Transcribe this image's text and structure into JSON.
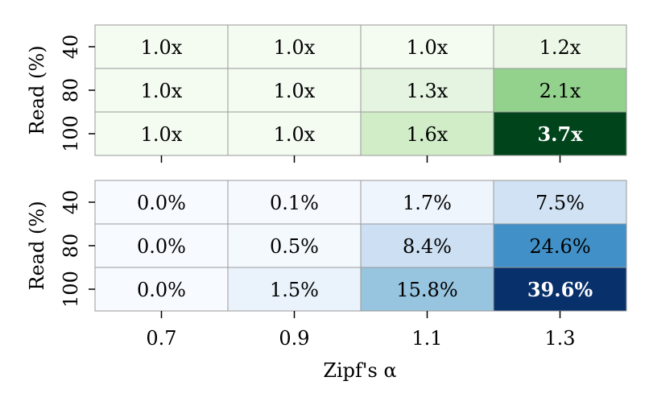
{
  "chart_data": [
    {
      "type": "heatmap",
      "colormap": "Greens",
      "x": [
        "0.7",
        "0.9",
        "1.1",
        "1.3"
      ],
      "y": [
        "40",
        "80",
        "100"
      ],
      "ylabel": "Read (%)",
      "values": [
        [
          1.0,
          1.0,
          1.0,
          1.2
        ],
        [
          1.0,
          1.0,
          1.3,
          2.1
        ],
        [
          1.0,
          1.0,
          1.6,
          3.7
        ]
      ],
      "labels": [
        [
          "1.0x",
          "1.0x",
          "1.0x",
          "1.2x"
        ],
        [
          "1.0x",
          "1.0x",
          "1.3x",
          "2.1x"
        ],
        [
          "1.0x",
          "1.0x",
          "1.6x",
          "3.7x"
        ]
      ],
      "colors": [
        [
          "#f4fbf1",
          "#f4fbf1",
          "#f4fbf1",
          "#ecf7e8"
        ],
        [
          "#f4fbf1",
          "#f4fbf1",
          "#e5f4e0",
          "#93d28d"
        ],
        [
          "#f4fbf1",
          "#f4fbf1",
          "#d0edc8",
          "#00441b"
        ]
      ],
      "highlight": {
        "row": 2,
        "col": 3
      }
    },
    {
      "type": "heatmap",
      "colormap": "Blues",
      "x": [
        "0.7",
        "0.9",
        "1.1",
        "1.3"
      ],
      "y": [
        "40",
        "80",
        "100"
      ],
      "ylabel": "Read (%)",
      "xlabel": "Zipf's α",
      "values": [
        [
          0.0,
          0.1,
          1.7,
          7.5
        ],
        [
          0.0,
          0.5,
          8.4,
          24.6
        ],
        [
          0.0,
          1.5,
          15.8,
          39.6
        ]
      ],
      "labels": [
        [
          "0.0%",
          "0.1%",
          "1.7%",
          "7.5%"
        ],
        [
          "0.0%",
          "0.5%",
          "8.4%",
          "24.6%"
        ],
        [
          "0.0%",
          "1.5%",
          "15.8%",
          "39.6%"
        ]
      ],
      "colors": [
        [
          "#f7fbff",
          "#f6faff",
          "#eef5fc",
          "#d0e2f3"
        ],
        [
          "#f7fbff",
          "#f4f9fe",
          "#cddff2",
          "#4190c7"
        ],
        [
          "#f7fbff",
          "#eaf3fb",
          "#97c4df",
          "#08306b"
        ]
      ],
      "highlight": {
        "row": 2,
        "col": 3
      }
    }
  ]
}
